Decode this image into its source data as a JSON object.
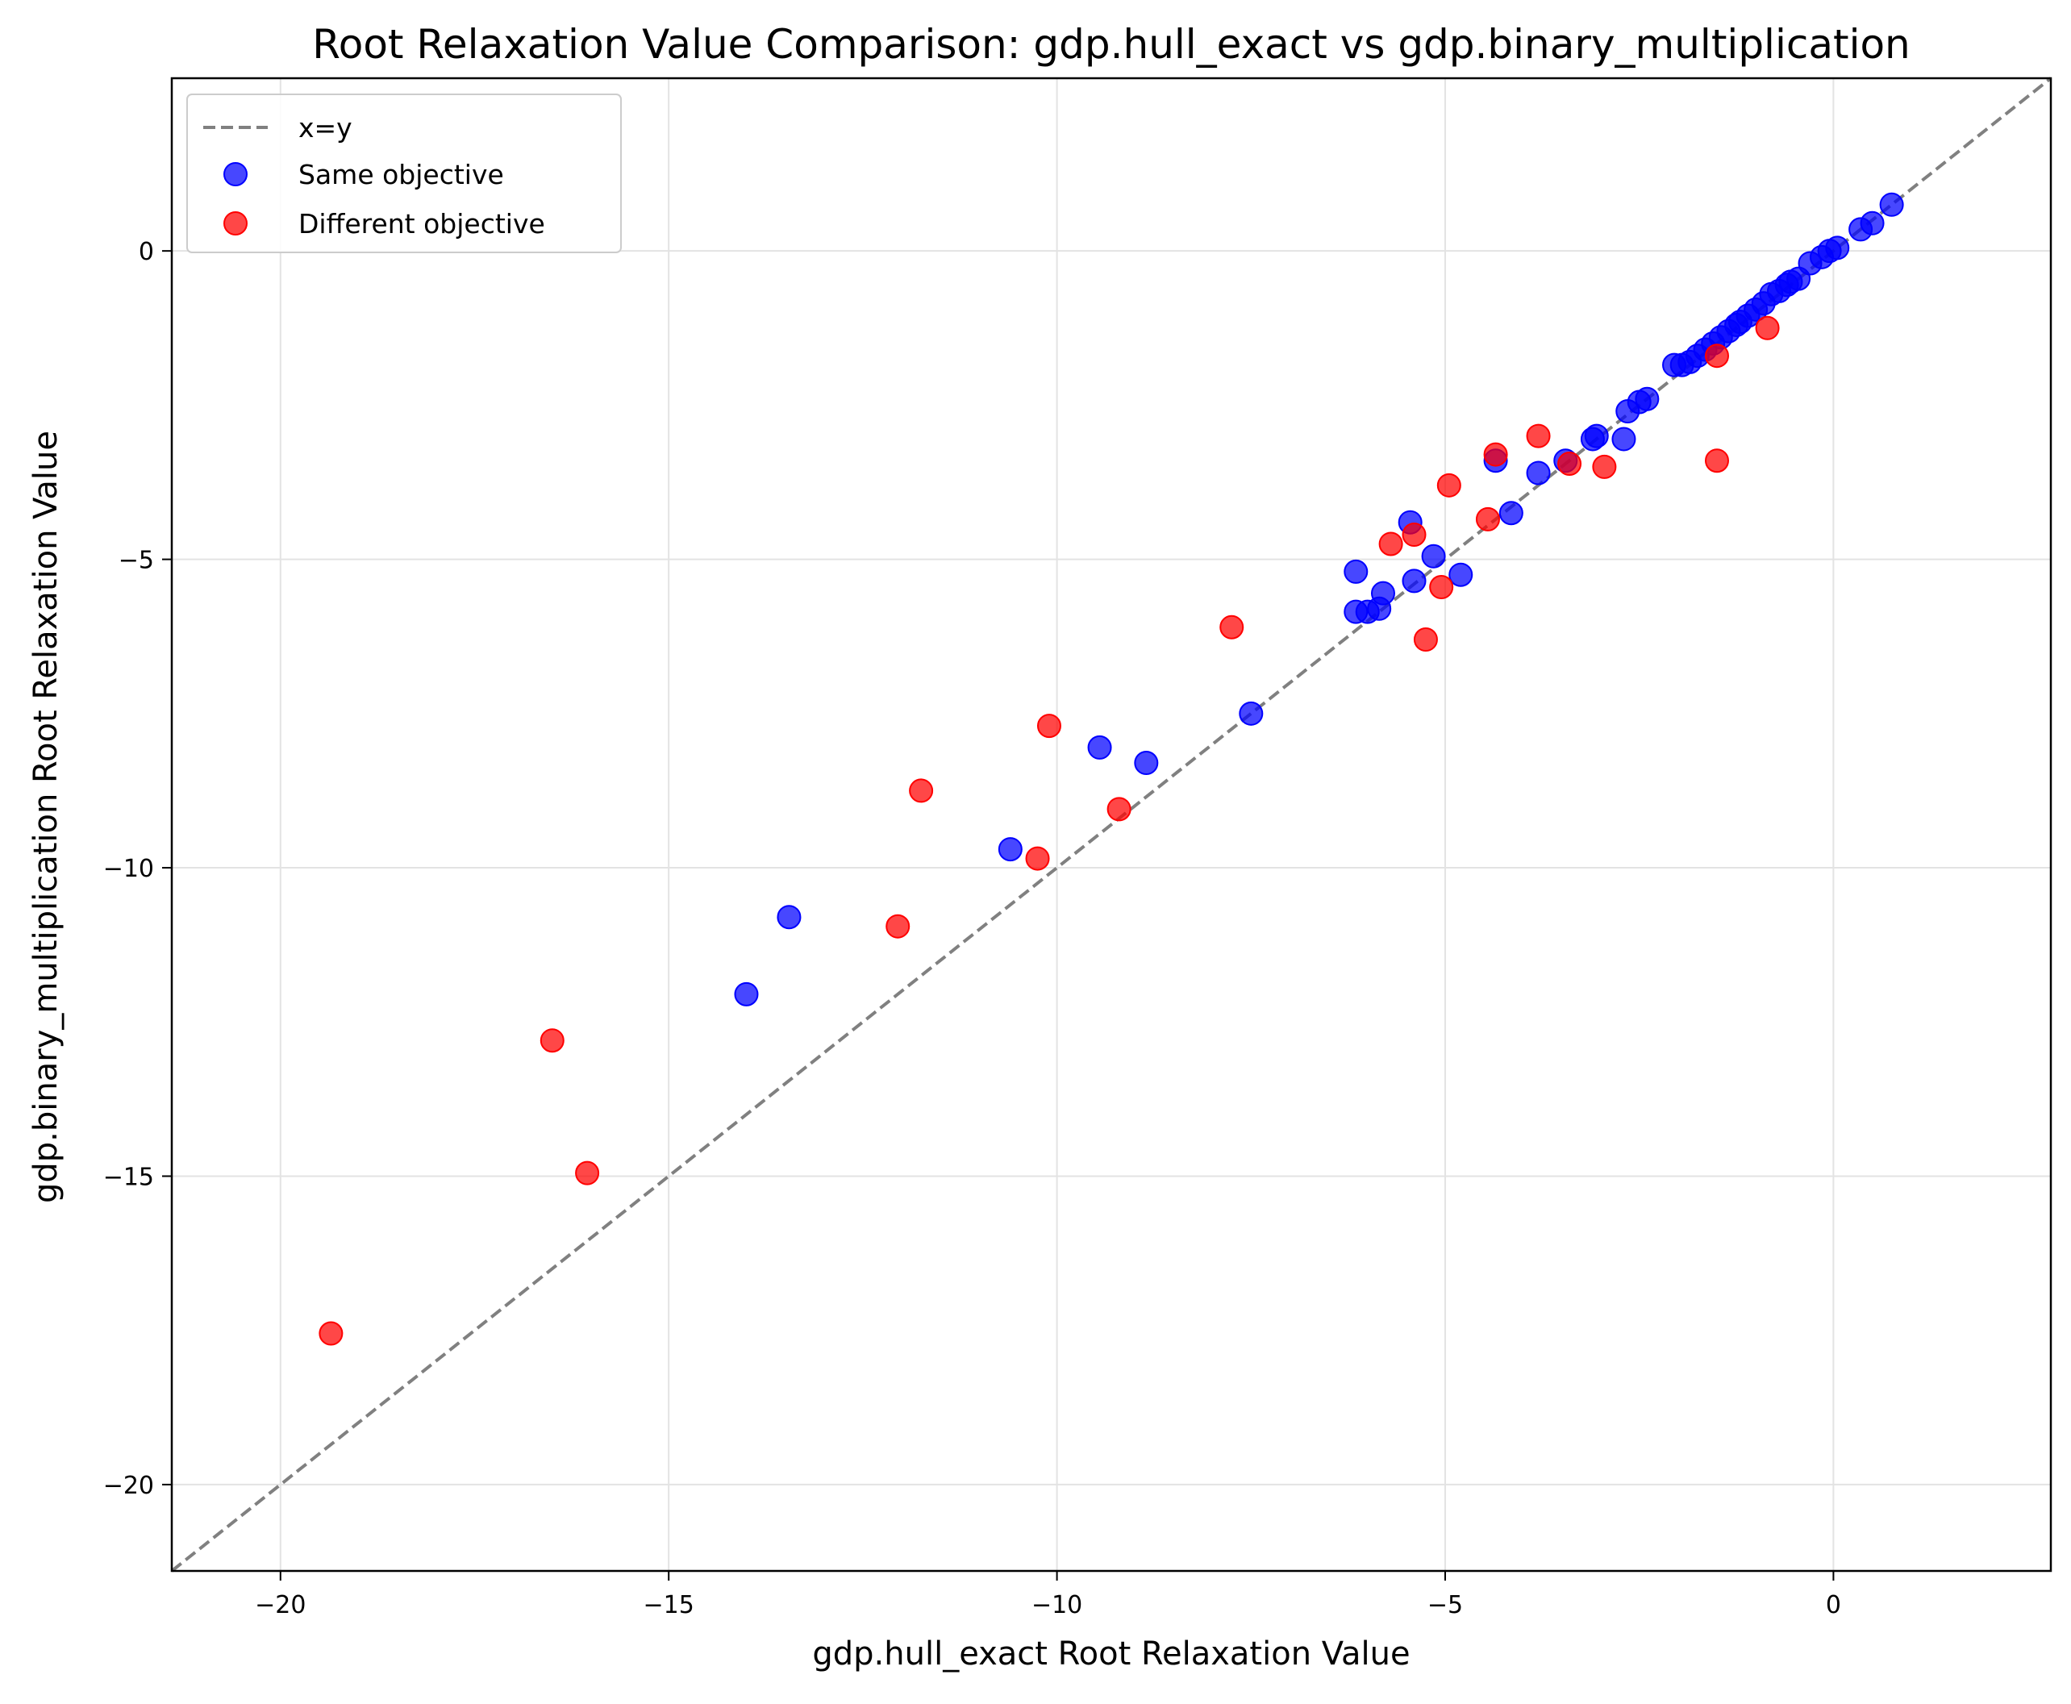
{
  "chart_data": {
    "type": "scatter",
    "title": "Root Relaxation Value Comparison: gdp.hull_exact vs gdp.binary_multiplication",
    "xlabel": "gdp.hull_exact Root Relaxation Value",
    "ylabel": "gdp.binary_multiplication Root Relaxation Value",
    "xlim": [
      -21.4,
      2.8
    ],
    "ylim": [
      -21.4,
      2.8
    ],
    "xticks": [
      -20,
      -15,
      -10,
      -5,
      0
    ],
    "yticks": [
      -20,
      -15,
      -10,
      -5,
      0
    ],
    "xtick_labels": [
      "−20",
      "−15",
      "−10",
      "−5",
      "0"
    ],
    "ytick_labels": [
      "−20",
      "−15",
      "−10",
      "−5",
      "0"
    ],
    "grid": true,
    "legend_position": "upper-left",
    "reference_line": {
      "label": "x=y",
      "style": "dashed",
      "color": "#808080"
    },
    "series": [
      {
        "name": "Same objective",
        "color": "#0000ff",
        "points": [
          [
            0.75,
            0.75
          ],
          [
            0.5,
            0.45
          ],
          [
            0.35,
            0.35
          ],
          [
            0.05,
            0.05
          ],
          [
            -0.05,
            0.0
          ],
          [
            -0.15,
            -0.1
          ],
          [
            -0.3,
            -0.2
          ],
          [
            -0.45,
            -0.45
          ],
          [
            -0.55,
            -0.5
          ],
          [
            -0.6,
            -0.55
          ],
          [
            -0.7,
            -0.65
          ],
          [
            -0.8,
            -0.7
          ],
          [
            -0.9,
            -0.85
          ],
          [
            -1.0,
            -0.95
          ],
          [
            -1.1,
            -1.05
          ],
          [
            -1.2,
            -1.15
          ],
          [
            -1.25,
            -1.2
          ],
          [
            -1.35,
            -1.3
          ],
          [
            -1.45,
            -1.4
          ],
          [
            -1.55,
            -1.5
          ],
          [
            -1.65,
            -1.6
          ],
          [
            -1.75,
            -1.7
          ],
          [
            -1.85,
            -1.8
          ],
          [
            -1.95,
            -1.85
          ],
          [
            -2.05,
            -1.85
          ],
          [
            -2.4,
            -2.4
          ],
          [
            -2.5,
            -2.45
          ],
          [
            -2.65,
            -2.6
          ],
          [
            -2.7,
            -3.05
          ],
          [
            -3.05,
            -3.0
          ],
          [
            -3.1,
            -3.05
          ],
          [
            -3.45,
            -3.4
          ],
          [
            -3.8,
            -3.6
          ],
          [
            -4.15,
            -4.25
          ],
          [
            -4.35,
            -3.4
          ],
          [
            -4.8,
            -5.25
          ],
          [
            -5.15,
            -4.95
          ],
          [
            -5.4,
            -5.35
          ],
          [
            -5.45,
            -4.4
          ],
          [
            -5.8,
            -5.55
          ],
          [
            -5.85,
            -5.8
          ],
          [
            -6.0,
            -5.85
          ],
          [
            -6.15,
            -5.2
          ],
          [
            -6.15,
            -5.85
          ],
          [
            -7.5,
            -7.5
          ],
          [
            -8.85,
            -8.3
          ],
          [
            -9.45,
            -8.05
          ],
          [
            -10.6,
            -9.7
          ],
          [
            -13.45,
            -10.8
          ],
          [
            -14.0,
            -12.05
          ]
        ]
      },
      {
        "name": "Different objective",
        "color": "#ff0000",
        "points": [
          [
            -0.85,
            -1.25
          ],
          [
            -1.5,
            -1.7
          ],
          [
            -1.5,
            -3.4
          ],
          [
            -2.95,
            -3.5
          ],
          [
            -3.4,
            -3.45
          ],
          [
            -3.8,
            -3.0
          ],
          [
            -4.35,
            -3.3
          ],
          [
            -4.45,
            -4.35
          ],
          [
            -4.95,
            -3.8
          ],
          [
            -5.05,
            -5.45
          ],
          [
            -5.25,
            -6.3
          ],
          [
            -5.4,
            -4.6
          ],
          [
            -5.7,
            -4.75
          ],
          [
            -7.75,
            -6.1
          ],
          [
            -9.2,
            -9.05
          ],
          [
            -10.1,
            -7.7
          ],
          [
            -10.25,
            -9.85
          ],
          [
            -11.75,
            -8.75
          ],
          [
            -12.05,
            -10.95
          ],
          [
            -16.05,
            -14.95
          ],
          [
            -16.5,
            -12.8
          ],
          [
            -19.35,
            -17.55
          ]
        ]
      }
    ]
  }
}
